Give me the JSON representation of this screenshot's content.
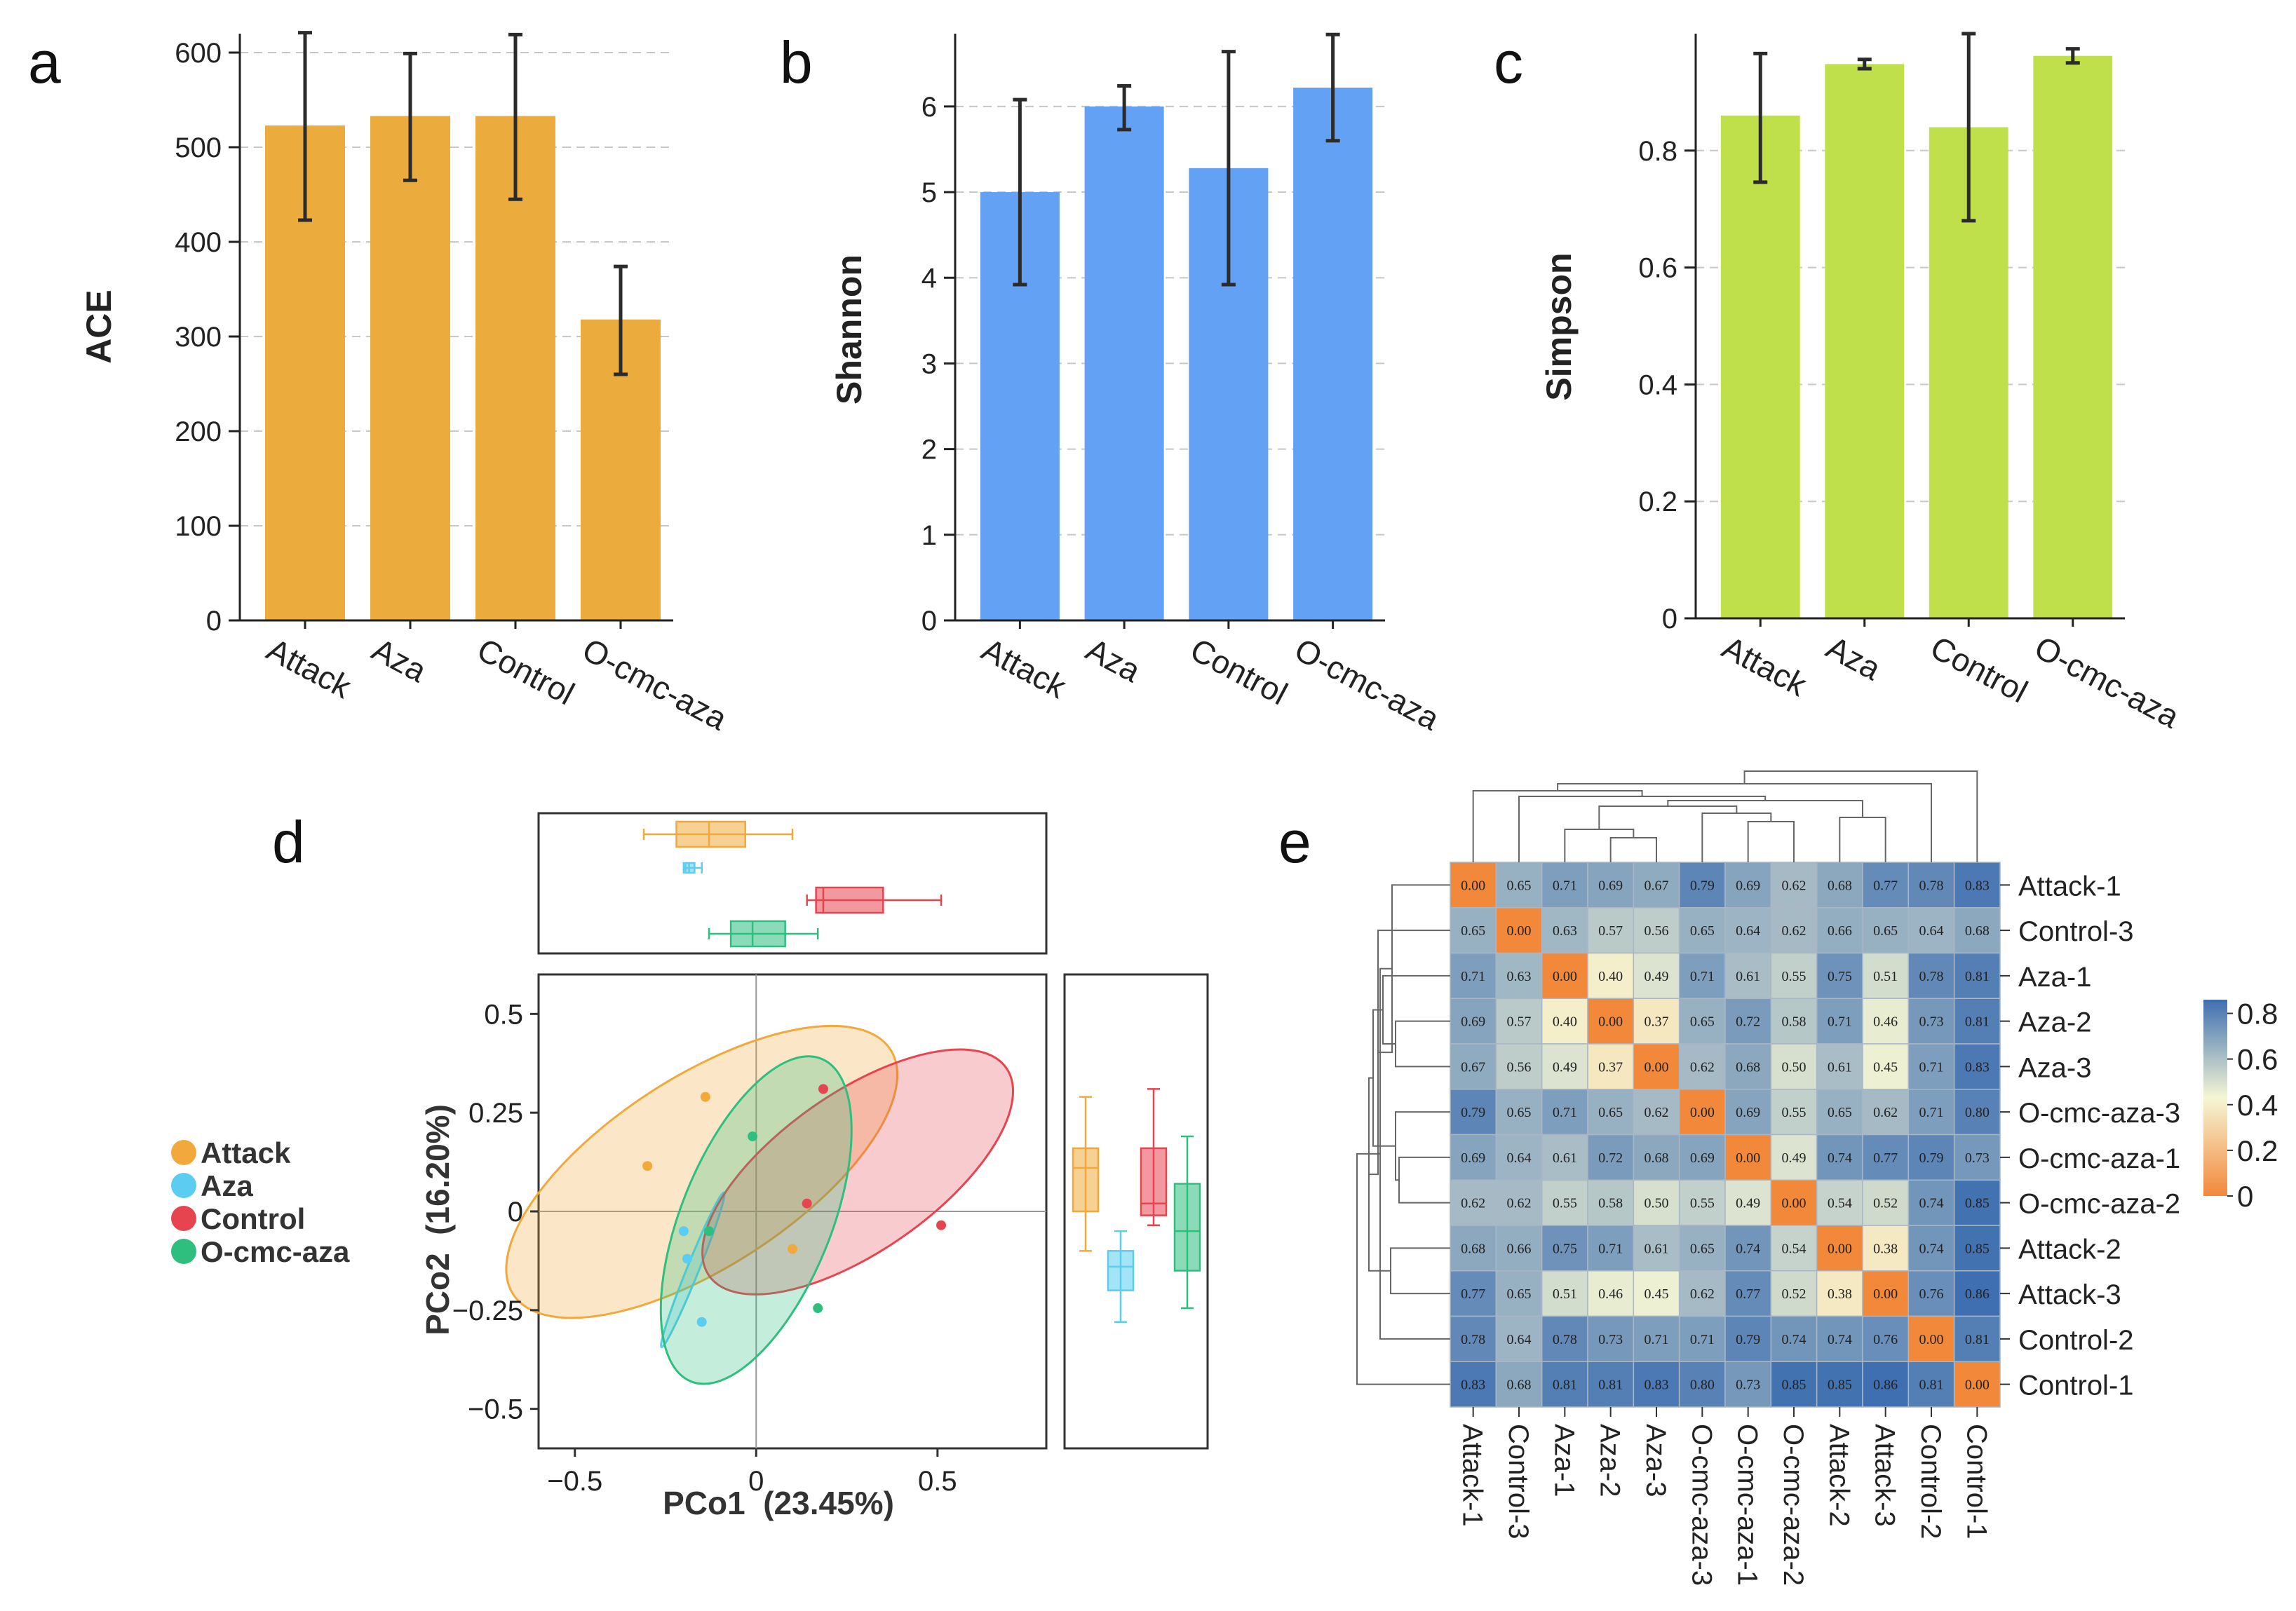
{
  "panel_labels": [
    "a",
    "b",
    "c",
    "d",
    "e"
  ],
  "colors": {
    "ace_bar": "#EBAC3D",
    "shannon_bar": "#63A1F5",
    "simpson_bar": "#BFE04B",
    "attack": "#F0A93A",
    "aza": "#5ACDF0",
    "control": "#E64550",
    "ocmc": "#2EBE7E",
    "heat_low": "#F2883A",
    "heat_mid": "#F5F6D5",
    "heat_high": "#3F6FB0"
  },
  "chart_data": [
    {
      "id": "a",
      "type": "bar",
      "categories": [
        "Attack",
        "Aza",
        "Control",
        "O-cmc-aza"
      ],
      "values": [
        523,
        533,
        533,
        318
      ],
      "error_low": [
        423,
        465,
        445,
        260
      ],
      "error_high": [
        621,
        599,
        619,
        374
      ],
      "ylabel": "ACE",
      "ylim": [
        0,
        620
      ],
      "yticks": [
        0,
        100,
        200,
        300,
        400,
        500,
        600
      ],
      "ytick_labels": [
        "0",
        "100",
        "200",
        "300",
        "400",
        "500",
        "600"
      ],
      "grid": true
    },
    {
      "id": "b",
      "type": "bar",
      "categories": [
        "Attack",
        "Aza",
        "Control",
        "O-cmc-aza"
      ],
      "values": [
        5.0,
        6.0,
        5.28,
        6.22
      ],
      "error_low": [
        3.92,
        5.73,
        3.92,
        5.6
      ],
      "error_high": [
        6.08,
        6.24,
        6.64,
        6.84
      ],
      "ylabel": "Shannon",
      "ylim": [
        0,
        6.85
      ],
      "yticks": [
        0,
        1,
        2,
        3,
        4,
        5,
        6
      ],
      "ytick_labels": [
        "0",
        "1",
        "2",
        "3",
        "4",
        "5",
        "6"
      ],
      "grid": true
    },
    {
      "id": "c",
      "type": "bar",
      "categories": [
        "Attack",
        "Aza",
        "Control",
        "O-cmc-aza"
      ],
      "values": [
        0.86,
        0.948,
        0.84,
        0.962
      ],
      "error_low": [
        0.746,
        0.94,
        0.68,
        0.95
      ],
      "error_high": [
        0.966,
        0.956,
        1.0,
        0.974
      ],
      "ylabel": "Simpson",
      "ylim": [
        0,
        1.0
      ],
      "yticks": [
        0,
        0.2,
        0.4,
        0.6,
        0.8
      ],
      "ytick_labels": [
        "0",
        "0.2",
        "0.4",
        "0.6",
        "0.8"
      ],
      "grid": true
    },
    {
      "id": "d",
      "type": "scatter",
      "xlabel": "PCo1  (23.45%)",
      "ylabel": "PCo2  (16.20%)",
      "xlim": [
        -0.6,
        0.8
      ],
      "ylim": [
        -0.6,
        0.6
      ],
      "xticks": [
        -0.5,
        0,
        0.5
      ],
      "xtick_labels": [
        "−0.5",
        "0",
        "0.5"
      ],
      "yticks": [
        -0.5,
        -0.25,
        0,
        0.25,
        0.5
      ],
      "ytick_labels": [
        "−0.5",
        "−0.25",
        "0",
        "0.25",
        "0.5"
      ],
      "legend": [
        "Attack",
        "Aza",
        "Control",
        "O-cmc-aza"
      ],
      "series": [
        {
          "name": "Attack",
          "color_key": "attack",
          "points": [
            [
              -0.3,
              0.115
            ],
            [
              -0.14,
              0.29
            ],
            [
              0.1,
              -0.095
            ]
          ],
          "ellipse": {
            "cx": -0.15,
            "cy": 0.1,
            "rx": 0.62,
            "ry": 0.24,
            "angle_deg": -33
          },
          "box_x": [
            -0.31,
            -0.22,
            -0.13,
            -0.03,
            0.1
          ],
          "box_y": [
            -0.1,
            0.0,
            0.11,
            0.16,
            0.29
          ]
        },
        {
          "name": "Aza",
          "color_key": "aza",
          "points": [
            [
              -0.2,
              -0.05
            ],
            [
              -0.19,
              -0.12
            ],
            [
              -0.15,
              -0.28
            ]
          ],
          "ellipse": {
            "cx": -0.175,
            "cy": -0.148,
            "rx": 0.23,
            "ry": 0.015,
            "angle_deg": -68
          },
          "box_x": [
            -0.2,
            -0.195,
            -0.185,
            -0.17,
            -0.15
          ],
          "box_y": [
            -0.28,
            -0.2,
            -0.14,
            -0.1,
            -0.05
          ]
        },
        {
          "name": "Control",
          "color_key": "control",
          "points": [
            [
              0.185,
              0.31
            ],
            [
              0.14,
              0.02
            ],
            [
              0.51,
              -0.035
            ]
          ],
          "ellipse": {
            "cx": 0.28,
            "cy": 0.1,
            "rx": 0.5,
            "ry": 0.2,
            "angle_deg": -35
          },
          "box_x": [
            0.14,
            0.165,
            0.185,
            0.35,
            0.51
          ],
          "box_y": [
            -0.035,
            -0.01,
            0.02,
            0.16,
            0.31
          ]
        },
        {
          "name": "O-cmc-aza",
          "color_key": "ocmc",
          "points": [
            [
              -0.13,
              -0.05
            ],
            [
              -0.01,
              0.19
            ],
            [
              0.17,
              -0.245
            ]
          ],
          "ellipse": {
            "cx": 0.0,
            "cy": -0.022,
            "rx": 0.48,
            "ry": 0.19,
            "angle_deg": -68
          },
          "box_x": [
            -0.13,
            -0.07,
            -0.01,
            0.08,
            0.17
          ],
          "box_y": [
            -0.245,
            -0.15,
            -0.05,
            0.07,
            0.19
          ]
        }
      ]
    },
    {
      "id": "e",
      "type": "heatmap",
      "row_labels": [
        "Attack-1",
        "Control-3",
        "Aza-1",
        "Aza-2",
        "Aza-3",
        "O-cmc-aza-3",
        "O-cmc-aza-1",
        "O-cmc-aza-2",
        "Attack-2",
        "Attack-3",
        "Control-2",
        "Control-1"
      ],
      "col_labels": [
        "Attack-1",
        "Control-3",
        "Aza-1",
        "Aza-2",
        "Aza-3",
        "O-cmc-aza-3",
        "O-cmc-aza-1",
        "O-cmc-aza-2",
        "Attack-2",
        "Attack-3",
        "Control-2",
        "Control-1"
      ],
      "values": [
        [
          0.0,
          0.65,
          0.71,
          0.69,
          0.67,
          0.79,
          0.69,
          0.62,
          0.68,
          0.77,
          0.78,
          0.83
        ],
        [
          0.65,
          0.0,
          0.63,
          0.57,
          0.56,
          0.65,
          0.64,
          0.62,
          0.66,
          0.65,
          0.64,
          0.68
        ],
        [
          0.71,
          0.63,
          0.0,
          0.4,
          0.49,
          0.71,
          0.61,
          0.55,
          0.75,
          0.51,
          0.78,
          0.81
        ],
        [
          0.69,
          0.57,
          0.4,
          0.0,
          0.37,
          0.65,
          0.72,
          0.58,
          0.71,
          0.46,
          0.73,
          0.81
        ],
        [
          0.67,
          0.56,
          0.49,
          0.37,
          0.0,
          0.62,
          0.68,
          0.5,
          0.61,
          0.45,
          0.71,
          0.83
        ],
        [
          0.79,
          0.65,
          0.71,
          0.65,
          0.62,
          0.0,
          0.69,
          0.55,
          0.65,
          0.62,
          0.71,
          0.8
        ],
        [
          0.69,
          0.64,
          0.61,
          0.72,
          0.68,
          0.69,
          0.0,
          0.49,
          0.74,
          0.77,
          0.79,
          0.73
        ],
        [
          0.62,
          0.62,
          0.55,
          0.58,
          0.5,
          0.55,
          0.49,
          0.0,
          0.54,
          0.52,
          0.74,
          0.85
        ],
        [
          0.68,
          0.66,
          0.75,
          0.71,
          0.61,
          0.65,
          0.74,
          0.54,
          0.0,
          0.38,
          0.74,
          0.85
        ],
        [
          0.77,
          0.65,
          0.51,
          0.46,
          0.45,
          0.62,
          0.77,
          0.52,
          0.38,
          0.0,
          0.76,
          0.86
        ],
        [
          0.78,
          0.64,
          0.78,
          0.73,
          0.71,
          0.71,
          0.79,
          0.74,
          0.74,
          0.76,
          0.0,
          0.81
        ],
        [
          0.83,
          0.68,
          0.81,
          0.81,
          0.83,
          0.8,
          0.73,
          0.85,
          0.85,
          0.86,
          0.81,
          0.0
        ]
      ],
      "colorbar_ticks": [
        0,
        0.2,
        0.4,
        0.6,
        0.8
      ],
      "colorbar_labels": [
        "0",
        "0.2",
        "0.4",
        "0.6",
        "0.8"
      ],
      "colorbar_range": [
        0,
        0.86
      ]
    }
  ]
}
